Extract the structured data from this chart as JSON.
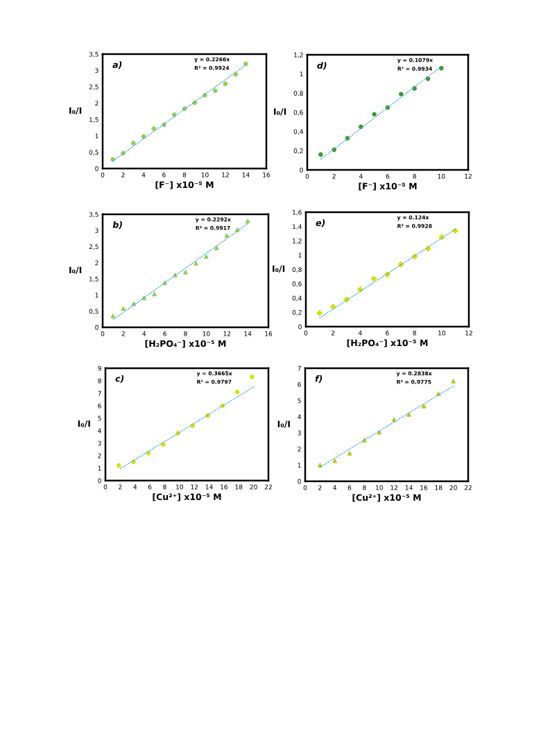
{
  "chart_data": [
    {
      "type": "scatter",
      "marker": "circle",
      "xlabel": "[F⁻] x10⁻⁵ M",
      "ylabel": "I₀/I",
      "annotations": [
        "a)",
        "y = 0.2266x",
        "R² = 0.9924"
      ],
      "xlim": [
        0,
        16
      ],
      "xticks": [
        0,
        2,
        4,
        6,
        8,
        10,
        12,
        14,
        16
      ],
      "ylim": [
        0,
        3.5
      ],
      "yticks": [
        0,
        {
          "value": 0.5,
          "label": "0,5"
        },
        1,
        {
          "value": 1.5,
          "label": "1,5"
        },
        2,
        {
          "value": 2.5,
          "label": "2,5"
        },
        3,
        {
          "value": 3.5,
          "label": "3,5"
        }
      ],
      "series": [
        {
          "color": "#92d050",
          "x": [
            1,
            2,
            3,
            4,
            5,
            6,
            7,
            8,
            9,
            10,
            11,
            12,
            13,
            14
          ],
          "values": [
            0.28,
            0.47,
            0.78,
            0.98,
            1.22,
            1.34,
            1.65,
            1.83,
            2.01,
            2.24,
            2.38,
            2.59,
            2.88,
            3.2
          ]
        },
        {
          "type": "line",
          "marker": "none",
          "line_style": "dotted",
          "color": "#3fa9e0",
          "x": [
            1,
            14
          ],
          "values": [
            0.23,
            3.17
          ]
        }
      ]
    },
    {
      "type": "scatter",
      "marker": "circle",
      "xlabel": "[F⁻] x10⁻⁵ M",
      "ylabel": "I₀/I",
      "annotations": [
        "d)",
        "y = 0.1079x",
        "R² = 0.9934"
      ],
      "xlim": [
        0,
        12
      ],
      "xticks": [
        0,
        2,
        4,
        6,
        8,
        10,
        12
      ],
      "ylim": [
        0,
        1.2
      ],
      "yticks": [
        0,
        {
          "value": 0.2,
          "label": "0,2"
        },
        {
          "value": 0.4,
          "label": "0,4"
        },
        {
          "value": 0.6,
          "label": "0,6"
        },
        {
          "value": 0.8,
          "label": "0,8"
        },
        1,
        {
          "value": 1.2,
          "label": "1,2"
        }
      ],
      "series": [
        {
          "color": "#3c9a2e",
          "x": [
            1,
            2,
            3,
            4,
            5,
            6,
            7,
            8,
            9,
            10
          ],
          "values": [
            0.16,
            0.21,
            0.33,
            0.45,
            0.58,
            0.65,
            0.79,
            0.85,
            0.95,
            1.06
          ]
        },
        {
          "type": "line",
          "marker": "none",
          "line_style": "dotted",
          "color": "#3fa9e0",
          "x": [
            1,
            10
          ],
          "values": [
            0.11,
            1.08
          ]
        }
      ]
    },
    {
      "type": "scatter",
      "marker": "triangle",
      "xlabel": "[H₂PO₄⁻] x10⁻⁵ M",
      "ylabel": "I₀/I",
      "annotations": [
        "b)",
        "y = 0.2292x",
        "R² = 0.9917"
      ],
      "xlim": [
        0,
        16
      ],
      "xticks": [
        0,
        2,
        4,
        6,
        8,
        10,
        12,
        14,
        16
      ],
      "ylim": [
        0,
        3.5
      ],
      "yticks": [
        0,
        {
          "value": 0.5,
          "label": "0,5"
        },
        1,
        {
          "value": 1.5,
          "label": "1,5"
        },
        2,
        {
          "value": 2.5,
          "label": "2,5"
        },
        3,
        {
          "value": 3.5,
          "label": "3,5"
        }
      ],
      "series": [
        {
          "color": "#92d050",
          "x": [
            1,
            2,
            3,
            4,
            5,
            6,
            7,
            8,
            9,
            10,
            11,
            12,
            13,
            14
          ],
          "values": [
            0.35,
            0.58,
            0.73,
            0.91,
            1.03,
            1.38,
            1.62,
            1.71,
            1.98,
            2.19,
            2.46,
            2.84,
            3.02,
            3.29
          ]
        },
        {
          "type": "line",
          "marker": "none",
          "line_style": "dotted",
          "color": "#3fa9e0",
          "x": [
            1,
            14
          ],
          "values": [
            0.23,
            3.21
          ]
        }
      ]
    },
    {
      "type": "scatter",
      "marker": "diamond",
      "xlabel": "[H₂PO₄⁻] x10⁻⁵ M",
      "ylabel": "I₀/I",
      "annotations": [
        "e)",
        "y = 0.124x",
        "R² = 0.9928"
      ],
      "xlim": [
        0,
        12
      ],
      "xticks": [
        0,
        2,
        4,
        6,
        8,
        10,
        12
      ],
      "ylim": [
        0,
        1.6
      ],
      "yticks": [
        0,
        {
          "value": 0.2,
          "label": "0,2"
        },
        {
          "value": 0.4,
          "label": "0,4"
        },
        {
          "value": 0.6,
          "label": "0,6"
        },
        {
          "value": 0.8,
          "label": "0,8"
        },
        1,
        {
          "value": 1.2,
          "label": "1,2"
        },
        {
          "value": 1.4,
          "label": "1,4"
        },
        {
          "value": 1.6,
          "label": "1,6"
        }
      ],
      "series": [
        {
          "color": "#d8e000",
          "x": [
            1,
            2,
            3,
            4,
            5,
            6,
            7,
            8,
            9,
            10,
            11
          ],
          "values": [
            0.19,
            0.28,
            0.38,
            0.52,
            0.67,
            0.73,
            0.87,
            0.98,
            1.09,
            1.25,
            1.34
          ]
        },
        {
          "type": "line",
          "marker": "none",
          "line_style": "dotted",
          "color": "#3fa9e0",
          "x": [
            1,
            11
          ],
          "values": [
            0.12,
            1.36
          ]
        }
      ]
    },
    {
      "type": "scatter",
      "marker": "circle",
      "xlabel": "[Cu²⁺] x10⁻⁵ M",
      "ylabel": "I₀/I",
      "annotations": [
        "c)",
        "y = 0.3665x",
        "R² = 0.9797"
      ],
      "xlim": [
        0,
        22
      ],
      "xticks": [
        0,
        2,
        4,
        6,
        8,
        10,
        12,
        14,
        16,
        18,
        20,
        22
      ],
      "ylim": [
        0,
        9
      ],
      "yticks": [
        0,
        1,
        2,
        3,
        4,
        5,
        6,
        7,
        8,
        9
      ],
      "series": [
        {
          "color": "#d4e600",
          "x": [
            1.8,
            3.8,
            5.8,
            7.8,
            9.8,
            11.8,
            13.8,
            15.8,
            17.8,
            19.8
          ],
          "values": [
            1.2,
            1.5,
            2.2,
            2.9,
            3.8,
            4.4,
            5.2,
            6.0,
            7.1,
            8.3
          ]
        },
        {
          "type": "line",
          "marker": "none",
          "line_style": "dotted",
          "color": "#3fa9e0",
          "x": [
            2,
            20
          ],
          "values": [
            0.95,
            7.5
          ]
        }
      ]
    },
    {
      "type": "scatter",
      "marker": "triangle",
      "xlabel": "[Cu²⁺] x10⁻⁵ M",
      "ylabel": "I₀/I",
      "annotations": [
        "f)",
        "y = 0.2838x",
        "R² = 0.9775"
      ],
      "xlim": [
        0,
        22
      ],
      "xticks": [
        0,
        2,
        4,
        6,
        8,
        10,
        12,
        14,
        16,
        18,
        20,
        22
      ],
      "ylim": [
        0,
        7
      ],
      "yticks": [
        0,
        1,
        2,
        3,
        4,
        5,
        6,
        7
      ],
      "series": [
        {
          "color": "#b5cc18",
          "x": [
            2,
            4,
            6,
            8,
            10,
            12,
            14,
            16,
            18,
            20
          ],
          "values": [
            1.0,
            1.27,
            1.73,
            2.55,
            3.03,
            3.82,
            4.13,
            4.65,
            5.42,
            6.2
          ]
        },
        {
          "type": "line",
          "marker": "none",
          "line_style": "dotted",
          "color": "#3fa9e0",
          "x": [
            2,
            20
          ],
          "values": [
            0.88,
            5.9
          ]
        }
      ]
    }
  ]
}
